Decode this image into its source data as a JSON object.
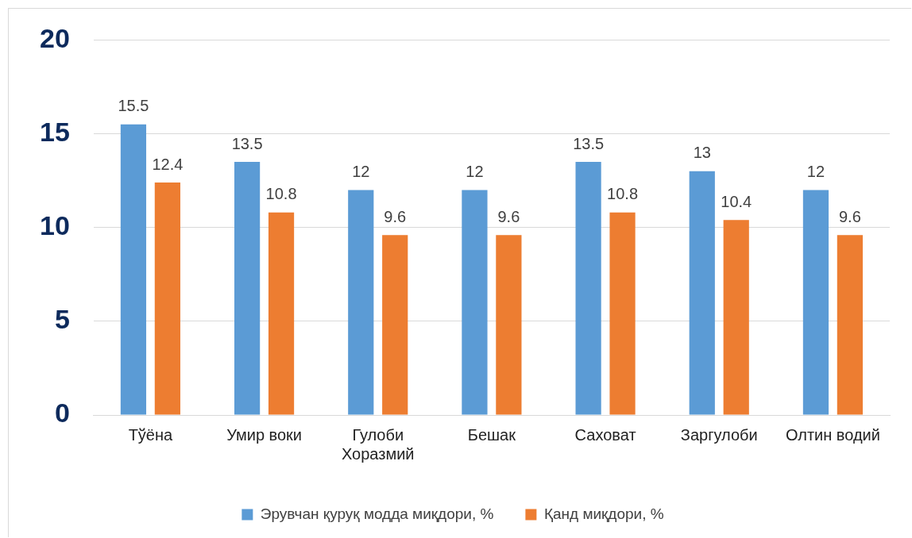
{
  "chart_data": {
    "type": "bar",
    "categories": [
      "Тўёна",
      "Умир воки",
      "Гулоби Хоразмий",
      "Бешак",
      "Саховат",
      "Заргулоби",
      "Олтин водий"
    ],
    "series": [
      {
        "name": "Эрувчан қуруқ модда миқдори, %",
        "color": "#5b9bd5",
        "values": [
          15.5,
          13.5,
          12,
          12,
          13.5,
          13,
          12
        ]
      },
      {
        "name": "Қанд миқдори, %",
        "color": "#ed7d31",
        "values": [
          12.4,
          10.8,
          9.6,
          9.6,
          10.8,
          10.4,
          9.6
        ]
      }
    ],
    "ylim": [
      0,
      20
    ],
    "yticks": [
      0,
      5,
      10,
      15,
      20
    ],
    "grid": "y",
    "legend": "bottom",
    "data_labels": true
  }
}
